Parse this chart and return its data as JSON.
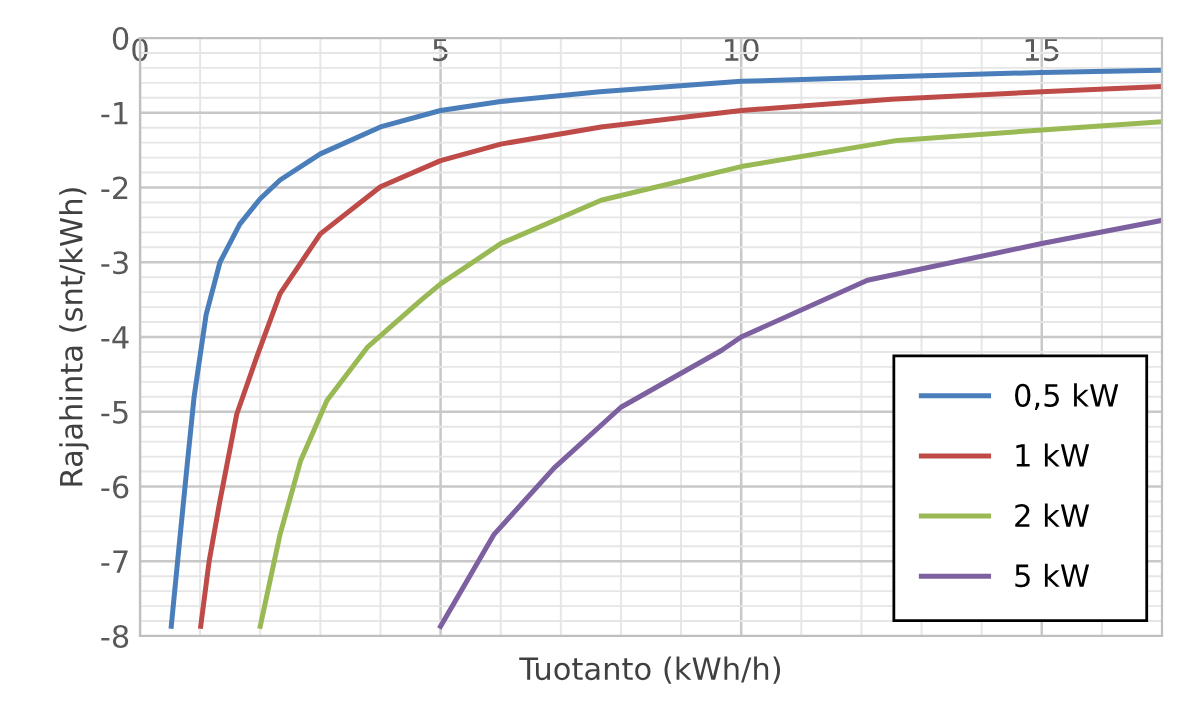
{
  "chart_data": {
    "type": "line",
    "xlabel": "Tuotanto (kWh/h)",
    "ylabel": "Rajahinta (snt/kWh)",
    "xlim": [
      0,
      17
    ],
    "ylim": [
      -8,
      0
    ],
    "xticks": [
      0,
      5,
      10,
      15
    ],
    "yticks": [
      0,
      -1,
      -2,
      -3,
      -4,
      -5,
      -6,
      -7,
      -8
    ],
    "grid": true,
    "legend": "bottom right",
    "marker": "none",
    "line_style": "solid",
    "series": [
      {
        "name": "0,5 kW",
        "color": "#4a7ebb",
        "x": [
          0.52,
          0.65,
          0.78,
          0.9,
          1.0,
          1.1,
          1.33,
          1.66,
          2.0,
          2.33,
          3,
          4,
          5,
          6,
          7.65,
          10,
          12.5,
          15,
          17
        ],
        "values": [
          -7.87,
          -6.8,
          -5.75,
          -4.8,
          -4.25,
          -3.7,
          -3.0,
          -2.49,
          -2.15,
          -1.9,
          -1.55,
          -1.19,
          -0.97,
          -0.85,
          -0.72,
          -0.58,
          -0.52,
          -0.46,
          -0.43
        ]
      },
      {
        "name": "1 kW",
        "color": "#be4b48",
        "x": [
          1.01,
          1.15,
          1.33,
          1.61,
          1.95,
          2.33,
          3,
          4,
          5,
          6,
          7.67,
          10,
          12.5,
          15,
          17
        ],
        "values": [
          -7.87,
          -7.0,
          -6.19,
          -5.03,
          -4.25,
          -3.42,
          -2.62,
          -1.99,
          -1.64,
          -1.42,
          -1.19,
          -0.97,
          -0.82,
          -0.72,
          -0.65
        ]
      },
      {
        "name": "2 kW",
        "color": "#98b954",
        "x": [
          2.0,
          2.33,
          2.67,
          3.11,
          3.78,
          4.67,
          5,
          6,
          7.67,
          10,
          12.6,
          15,
          17
        ],
        "values": [
          -7.87,
          -6.64,
          -5.66,
          -4.85,
          -4.14,
          -3.51,
          -3.29,
          -2.75,
          -2.17,
          -1.72,
          -1.37,
          -1.23,
          -1.12
        ]
      },
      {
        "name": "5 kW",
        "color": "#7d60a0",
        "x": [
          5,
          5.89,
          6.89,
          8,
          9.67,
          10,
          12.1,
          15,
          17
        ],
        "values": [
          -7.87,
          -6.64,
          -5.75,
          -4.94,
          -4.18,
          -4.0,
          -3.24,
          -2.75,
          -2.44
        ]
      }
    ]
  }
}
